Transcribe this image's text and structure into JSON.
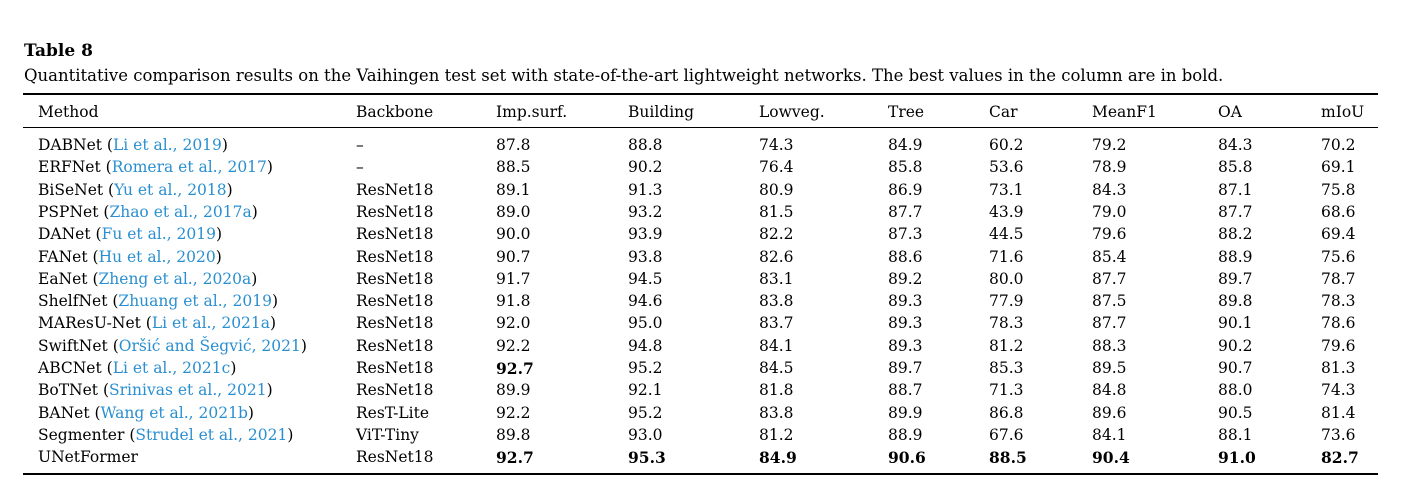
{
  "table": {
    "label": "Table 8",
    "caption": "Quantitative comparison results on the Vaihingen test set with state-of-the-art lightweight networks. The best values in the column are in bold.",
    "headers": [
      "Method",
      "Backbone",
      "Imp.surf.",
      "Building",
      "Lowveg.",
      "Tree",
      "Car",
      "MeanF1",
      "OA",
      "mIoU"
    ],
    "rows": [
      {
        "method": "DABNet",
        "cite": "Li et al., 2019",
        "backbone": "–",
        "values": [
          "87.8",
          "88.8",
          "74.3",
          "84.9",
          "60.2",
          "79.2",
          "84.3",
          "70.2"
        ]
      },
      {
        "method": "ERFNet",
        "cite": "Romera et al., 2017",
        "backbone": "–",
        "values": [
          "88.5",
          "90.2",
          "76.4",
          "85.8",
          "53.6",
          "78.9",
          "85.8",
          "69.1"
        ]
      },
      {
        "method": "BiSeNet",
        "cite": "Yu et al., 2018",
        "backbone": "ResNet18",
        "values": [
          "89.1",
          "91.3",
          "80.9",
          "86.9",
          "73.1",
          "84.3",
          "87.1",
          "75.8"
        ]
      },
      {
        "method": "PSPNet",
        "cite": "Zhao et al., 2017a",
        "backbone": "ResNet18",
        "values": [
          "89.0",
          "93.2",
          "81.5",
          "87.7",
          "43.9",
          "79.0",
          "87.7",
          "68.6"
        ]
      },
      {
        "method": "DANet",
        "cite": "Fu et al., 2019",
        "backbone": "ResNet18",
        "values": [
          "90.0",
          "93.9",
          "82.2",
          "87.3",
          "44.5",
          "79.6",
          "88.2",
          "69.4"
        ]
      },
      {
        "method": "FANet",
        "cite": "Hu et al., 2020",
        "backbone": "ResNet18",
        "values": [
          "90.7",
          "93.8",
          "82.6",
          "88.6",
          "71.6",
          "85.4",
          "88.9",
          "75.6"
        ]
      },
      {
        "method": "EaNet",
        "cite": "Zheng et al., 2020a",
        "backbone": "ResNet18",
        "values": [
          "91.7",
          "94.5",
          "83.1",
          "89.2",
          "80.0",
          "87.7",
          "89.7",
          "78.7"
        ]
      },
      {
        "method": "ShelfNet",
        "cite": "Zhuang et al., 2019",
        "backbone": "ResNet18",
        "values": [
          "91.8",
          "94.6",
          "83.8",
          "89.3",
          "77.9",
          "87.5",
          "89.8",
          "78.3"
        ]
      },
      {
        "method": "MAResU-Net",
        "cite": "Li et al., 2021a",
        "backbone": "ResNet18",
        "values": [
          "92.0",
          "95.0",
          "83.7",
          "89.3",
          "78.3",
          "87.7",
          "90.1",
          "78.6"
        ]
      },
      {
        "method": "SwiftNet",
        "cite": "Oršić and Šegvić, 2021",
        "backbone": "ResNet18",
        "values": [
          "92.2",
          "94.8",
          "84.1",
          "89.3",
          "81.2",
          "88.3",
          "90.2",
          "79.6"
        ]
      },
      {
        "method": "ABCNet",
        "cite": "Li et al., 2021c",
        "backbone": "ResNet18",
        "values": [
          "92.7",
          "95.2",
          "84.5",
          "89.7",
          "85.3",
          "89.5",
          "90.7",
          "81.3"
        ],
        "bold": [
          0
        ]
      },
      {
        "method": "BoTNet",
        "cite": "Srinivas et al., 2021",
        "backbone": "ResNet18",
        "values": [
          "89.9",
          "92.1",
          "81.8",
          "88.7",
          "71.3",
          "84.8",
          "88.0",
          "74.3"
        ]
      },
      {
        "method": "BANet",
        "cite": "Wang et al., 2021b",
        "backbone": "ResT-Lite",
        "values": [
          "92.2",
          "95.2",
          "83.8",
          "89.9",
          "86.8",
          "89.6",
          "90.5",
          "81.4"
        ]
      },
      {
        "method": "Segmenter",
        "cite": "Strudel et al., 2021",
        "backbone": "ViT-Tiny",
        "values": [
          "89.8",
          "93.0",
          "81.2",
          "88.9",
          "67.6",
          "84.1",
          "88.1",
          "73.6"
        ]
      },
      {
        "method": "UNetFormer",
        "cite": "",
        "backbone": "ResNet18",
        "values": [
          "92.7",
          "95.3",
          "84.9",
          "90.6",
          "88.5",
          "90.4",
          "91.0",
          "82.7"
        ],
        "bold": [
          0,
          1,
          2,
          3,
          4,
          5,
          6,
          7
        ]
      }
    ]
  },
  "colors": {
    "citation": "#2a8fd0",
    "text": "#000000"
  }
}
